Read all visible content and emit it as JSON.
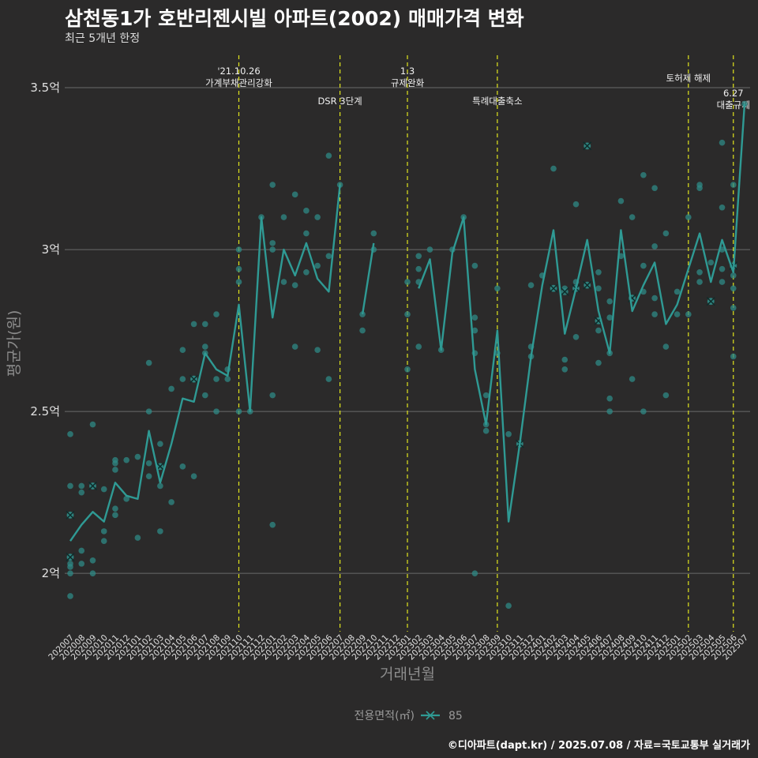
{
  "title": "삼천동1가 호반리젠시빌 아파트(2002) 매매가격 변화",
  "subtitle": "최근 5개년 한정",
  "caption": "©디아파트(dapt.kr) / 2025.07.08 / 자료=국토교통부 실거래가",
  "colors": {
    "background": "#2b2a2a",
    "series": "#2f9a94",
    "points": "#2f8a85",
    "event_line": "#e1e61d",
    "grid": "#6a6a6a"
  },
  "chart_data": {
    "type": "line",
    "xlabel": "거래년월",
    "ylabel": "평균가(원)",
    "ylim": [
      1.82,
      3.6
    ],
    "y_ticks": [
      {
        "value": 2.0,
        "label": "2억"
      },
      {
        "value": 2.5,
        "label": "2.5억"
      },
      {
        "value": 3.0,
        "label": "3억"
      },
      {
        "value": 3.5,
        "label": "3.5억"
      }
    ],
    "grid": true,
    "legend": {
      "title": "전용면적(㎡)",
      "position": "bottom",
      "entries": [
        "85"
      ]
    },
    "categories": [
      "202007",
      "202008",
      "202009",
      "202010",
      "202011",
      "202012",
      "202101",
      "202102",
      "202103",
      "202104",
      "202105",
      "202106",
      "202107",
      "202108",
      "202109",
      "202110",
      "202111",
      "202112",
      "202201",
      "202202",
      "202203",
      "202204",
      "202205",
      "202206",
      "202207",
      "202208",
      "202209",
      "202210",
      "202211",
      "202212",
      "202301",
      "202302",
      "202303",
      "202304",
      "202305",
      "202306",
      "202307",
      "202308",
      "202309",
      "202310",
      "202311",
      "202312",
      "202401",
      "202402",
      "202403",
      "202404",
      "202405",
      "202406",
      "202407",
      "202408",
      "202409",
      "202410",
      "202411",
      "202412",
      "202501",
      "202502",
      "202503",
      "202504",
      "202505",
      "202506",
      "202507"
    ],
    "series": [
      {
        "name": "85",
        "values": [
          2.1,
          2.15,
          2.19,
          2.16,
          2.28,
          2.24,
          2.23,
          2.44,
          2.28,
          2.4,
          2.54,
          2.53,
          2.68,
          2.63,
          2.61,
          2.83,
          2.5,
          3.1,
          2.79,
          3.0,
          2.92,
          3.02,
          2.91,
          2.87,
          3.2,
          null,
          2.8,
          3.02,
          null,
          null,
          null,
          2.88,
          2.97,
          2.69,
          2.99,
          3.1,
          2.63,
          2.46,
          2.75,
          2.16,
          2.4,
          2.67,
          2.89,
          3.06,
          2.74,
          2.88,
          3.03,
          2.81,
          2.68,
          3.06,
          2.81,
          2.89,
          2.96,
          2.77,
          2.83,
          2.94,
          3.05,
          2.9,
          3.03,
          2.93,
          3.45
        ]
      }
    ],
    "scatter_points": [
      {
        "x": "202007",
        "y": 2.43
      },
      {
        "x": "202007",
        "y": 2.27
      },
      {
        "x": "202007",
        "y": 2.18
      },
      {
        "x": "202007",
        "y": 2.05
      },
      {
        "x": "202007",
        "y": 2.03
      },
      {
        "x": "202007",
        "y": 2.02
      },
      {
        "x": "202007",
        "y": 2.0
      },
      {
        "x": "202007",
        "y": 1.93
      },
      {
        "x": "202008",
        "y": 2.27
      },
      {
        "x": "202008",
        "y": 2.25
      },
      {
        "x": "202008",
        "y": 2.07
      },
      {
        "x": "202008",
        "y": 2.03
      },
      {
        "x": "202009",
        "y": 2.46
      },
      {
        "x": "202009",
        "y": 2.27
      },
      {
        "x": "202009",
        "y": 2.04
      },
      {
        "x": "202009",
        "y": 2.0
      },
      {
        "x": "202010",
        "y": 2.26
      },
      {
        "x": "202010",
        "y": 2.13
      },
      {
        "x": "202010",
        "y": 2.1
      },
      {
        "x": "202011",
        "y": 2.35
      },
      {
        "x": "202011",
        "y": 2.34
      },
      {
        "x": "202011",
        "y": 2.32
      },
      {
        "x": "202011",
        "y": 2.2
      },
      {
        "x": "202011",
        "y": 2.18
      },
      {
        "x": "202012",
        "y": 2.35
      },
      {
        "x": "202012",
        "y": 2.23
      },
      {
        "x": "202101",
        "y": 2.36
      },
      {
        "x": "202101",
        "y": 2.11
      },
      {
        "x": "202102",
        "y": 2.65
      },
      {
        "x": "202102",
        "y": 2.5
      },
      {
        "x": "202102",
        "y": 2.34
      },
      {
        "x": "202102",
        "y": 2.3
      },
      {
        "x": "202103",
        "y": 2.4
      },
      {
        "x": "202103",
        "y": 2.33
      },
      {
        "x": "202103",
        "y": 2.27
      },
      {
        "x": "202103",
        "y": 2.13
      },
      {
        "x": "202104",
        "y": 2.57
      },
      {
        "x": "202104",
        "y": 2.22
      },
      {
        "x": "202105",
        "y": 2.69
      },
      {
        "x": "202105",
        "y": 2.6
      },
      {
        "x": "202105",
        "y": 2.33
      },
      {
        "x": "202106",
        "y": 2.77
      },
      {
        "x": "202106",
        "y": 2.6
      },
      {
        "x": "202106",
        "y": 2.3
      },
      {
        "x": "202107",
        "y": 2.77
      },
      {
        "x": "202107",
        "y": 2.7
      },
      {
        "x": "202107",
        "y": 2.68
      },
      {
        "x": "202107",
        "y": 2.55
      },
      {
        "x": "202108",
        "y": 2.8
      },
      {
        "x": "202108",
        "y": 2.6
      },
      {
        "x": "202108",
        "y": 2.5
      },
      {
        "x": "202109",
        "y": 2.63
      },
      {
        "x": "202109",
        "y": 2.6
      },
      {
        "x": "202110",
        "y": 3.0
      },
      {
        "x": "202110",
        "y": 2.94
      },
      {
        "x": "202110",
        "y": 2.9
      },
      {
        "x": "202110",
        "y": 2.5
      },
      {
        "x": "202111",
        "y": 2.5
      },
      {
        "x": "202112",
        "y": 3.1
      },
      {
        "x": "202201",
        "y": 3.2
      },
      {
        "x": "202201",
        "y": 3.02
      },
      {
        "x": "202201",
        "y": 3.0
      },
      {
        "x": "202201",
        "y": 2.55
      },
      {
        "x": "202201",
        "y": 2.15
      },
      {
        "x": "202202",
        "y": 3.1
      },
      {
        "x": "202202",
        "y": 2.9
      },
      {
        "x": "202203",
        "y": 3.17
      },
      {
        "x": "202203",
        "y": 2.89
      },
      {
        "x": "202203",
        "y": 2.7
      },
      {
        "x": "202204",
        "y": 3.12
      },
      {
        "x": "202204",
        "y": 3.05
      },
      {
        "x": "202204",
        "y": 2.93
      },
      {
        "x": "202205",
        "y": 3.1
      },
      {
        "x": "202205",
        "y": 2.95
      },
      {
        "x": "202205",
        "y": 2.69
      },
      {
        "x": "202206",
        "y": 3.29
      },
      {
        "x": "202206",
        "y": 2.98
      },
      {
        "x": "202206",
        "y": 2.6
      },
      {
        "x": "202207",
        "y": 3.2
      },
      {
        "x": "202209",
        "y": 2.8
      },
      {
        "x": "202209",
        "y": 2.75
      },
      {
        "x": "202210",
        "y": 3.05
      },
      {
        "x": "202210",
        "y": 3.0
      },
      {
        "x": "202301",
        "y": 2.9
      },
      {
        "x": "202301",
        "y": 2.8
      },
      {
        "x": "202301",
        "y": 2.63
      },
      {
        "x": "202302",
        "y": 2.98
      },
      {
        "x": "202302",
        "y": 2.94
      },
      {
        "x": "202302",
        "y": 2.9
      },
      {
        "x": "202302",
        "y": 2.7
      },
      {
        "x": "202303",
        "y": 3.0
      },
      {
        "x": "202304",
        "y": 2.69
      },
      {
        "x": "202305",
        "y": 3.0
      },
      {
        "x": "202306",
        "y": 3.1
      },
      {
        "x": "202307",
        "y": 2.95
      },
      {
        "x": "202307",
        "y": 2.79
      },
      {
        "x": "202307",
        "y": 2.75
      },
      {
        "x": "202307",
        "y": 2.68
      },
      {
        "x": "202307",
        "y": 2.0
      },
      {
        "x": "202308",
        "y": 2.55
      },
      {
        "x": "202308",
        "y": 2.46
      },
      {
        "x": "202308",
        "y": 2.44
      },
      {
        "x": "202309",
        "y": 2.88
      },
      {
        "x": "202309",
        "y": 2.68
      },
      {
        "x": "202310",
        "y": 2.43
      },
      {
        "x": "202310",
        "y": 1.9
      },
      {
        "x": "202311",
        "y": 2.4
      },
      {
        "x": "202312",
        "y": 2.89
      },
      {
        "x": "202312",
        "y": 2.7
      },
      {
        "x": "202312",
        "y": 2.67
      },
      {
        "x": "202401",
        "y": 2.92
      },
      {
        "x": "202402",
        "y": 3.25
      },
      {
        "x": "202402",
        "y": 2.88
      },
      {
        "x": "202403",
        "y": 2.88
      },
      {
        "x": "202403",
        "y": 2.66
      },
      {
        "x": "202403",
        "y": 2.63
      },
      {
        "x": "202404",
        "y": 3.14
      },
      {
        "x": "202404",
        "y": 2.9
      },
      {
        "x": "202404",
        "y": 2.88
      },
      {
        "x": "202404",
        "y": 2.73
      },
      {
        "x": "202405",
        "y": 3.32
      },
      {
        "x": "202405",
        "y": 2.89
      },
      {
        "x": "202406",
        "y": 2.93
      },
      {
        "x": "202406",
        "y": 2.88
      },
      {
        "x": "202406",
        "y": 2.78
      },
      {
        "x": "202406",
        "y": 2.75
      },
      {
        "x": "202406",
        "y": 2.65
      },
      {
        "x": "202407",
        "y": 2.84
      },
      {
        "x": "202407",
        "y": 2.79
      },
      {
        "x": "202407",
        "y": 2.68
      },
      {
        "x": "202407",
        "y": 2.54
      },
      {
        "x": "202407",
        "y": 2.5
      },
      {
        "x": "202408",
        "y": 3.15
      },
      {
        "x": "202408",
        "y": 2.98
      },
      {
        "x": "202409",
        "y": 3.1
      },
      {
        "x": "202409",
        "y": 2.85
      },
      {
        "x": "202409",
        "y": 2.6
      },
      {
        "x": "202410",
        "y": 3.23
      },
      {
        "x": "202410",
        "y": 2.95
      },
      {
        "x": "202410",
        "y": 2.87
      },
      {
        "x": "202410",
        "y": 2.5
      },
      {
        "x": "202411",
        "y": 3.19
      },
      {
        "x": "202411",
        "y": 3.01
      },
      {
        "x": "202411",
        "y": 2.85
      },
      {
        "x": "202411",
        "y": 2.8
      },
      {
        "x": "202412",
        "y": 3.05
      },
      {
        "x": "202412",
        "y": 2.7
      },
      {
        "x": "202412",
        "y": 2.55
      },
      {
        "x": "202501",
        "y": 2.87
      },
      {
        "x": "202501",
        "y": 2.8
      },
      {
        "x": "202502",
        "y": 3.1
      },
      {
        "x": "202502",
        "y": 2.8
      },
      {
        "x": "202503",
        "y": 3.2
      },
      {
        "x": "202503",
        "y": 3.19
      },
      {
        "x": "202503",
        "y": 2.93
      },
      {
        "x": "202503",
        "y": 2.9
      },
      {
        "x": "202504",
        "y": 2.96
      },
      {
        "x": "202504",
        "y": 2.84
      },
      {
        "x": "202505",
        "y": 3.33
      },
      {
        "x": "202505",
        "y": 3.13
      },
      {
        "x": "202505",
        "y": 3.0
      },
      {
        "x": "202505",
        "y": 2.94
      },
      {
        "x": "202505",
        "y": 2.9
      },
      {
        "x": "202506",
        "y": 3.2
      },
      {
        "x": "202506",
        "y": 2.95
      },
      {
        "x": "202506",
        "y": 2.92
      },
      {
        "x": "202506",
        "y": 2.88
      },
      {
        "x": "202506",
        "y": 2.82
      },
      {
        "x": "202506",
        "y": 2.67
      },
      {
        "x": "202507",
        "y": 3.45
      }
    ],
    "cross_points": [
      {
        "x": "202007",
        "y": 2.18
      },
      {
        "x": "202007",
        "y": 2.05
      },
      {
        "x": "202009",
        "y": 2.27
      },
      {
        "x": "202103",
        "y": 2.33
      },
      {
        "x": "202106",
        "y": 2.6
      },
      {
        "x": "202311",
        "y": 2.4
      },
      {
        "x": "202402",
        "y": 2.88
      },
      {
        "x": "202403",
        "y": 2.87
      },
      {
        "x": "202404",
        "y": 2.88
      },
      {
        "x": "202405",
        "y": 2.89
      },
      {
        "x": "202405",
        "y": 3.32
      },
      {
        "x": "202406",
        "y": 2.78
      },
      {
        "x": "202409",
        "y": 2.85
      },
      {
        "x": "202504",
        "y": 2.84
      },
      {
        "x": "202506",
        "y": 2.95
      }
    ],
    "events": [
      {
        "x": "202110",
        "lines": [
          "'21.10.26",
          "가계부채관리강화"
        ],
        "row": 0
      },
      {
        "x": "202207",
        "lines": [
          "DSR 3단계"
        ],
        "row": 1
      },
      {
        "x": "202301",
        "lines": [
          "1.3",
          "규제완화"
        ],
        "row": 0
      },
      {
        "x": "202309",
        "lines": [
          "특례대출축소"
        ],
        "row": 1
      },
      {
        "x": "202502",
        "lines": [
          "토허제 해제"
        ],
        "row": 0
      },
      {
        "x": "202506",
        "lines": [
          "6.27",
          "대출규제"
        ],
        "row": 1
      }
    ]
  }
}
